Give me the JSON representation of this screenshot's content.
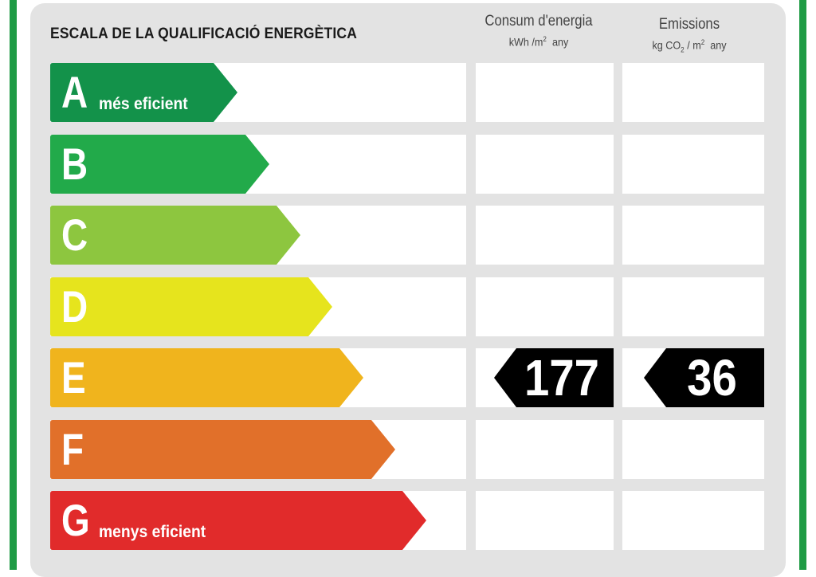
{
  "title": "ESCALA DE LA QUALIFICACIÓ ENERGÈTICA",
  "columns": {
    "energy": {
      "label": "Consum d'energia",
      "unit_prefix": "kWh /m",
      "unit_exp": "2",
      "unit_suffix": "any"
    },
    "emissions": {
      "label": "Emissions",
      "unit_prefix": "kg CO",
      "unit_sub": "2",
      "unit_mid": "/ m",
      "unit_exp": "2",
      "unit_suffix": "any"
    }
  },
  "classes": [
    {
      "letter": "A",
      "sublabel": "més eficient",
      "color": "#13924a"
    },
    {
      "letter": "B",
      "sublabel": "",
      "color": "#22aa4a"
    },
    {
      "letter": "C",
      "sublabel": "",
      "color": "#8dc63f"
    },
    {
      "letter": "D",
      "sublabel": "",
      "color": "#e6e41d"
    },
    {
      "letter": "E",
      "sublabel": "",
      "color": "#f0b41d"
    },
    {
      "letter": "F",
      "sublabel": "",
      "color": "#e1702a"
    },
    {
      "letter": "G",
      "sublabel": "menys eficient",
      "color": "#e12b2b"
    }
  ],
  "rating": {
    "class": "E",
    "energy_value": "177",
    "emissions_value": "36",
    "badge_color": "#000000"
  }
}
